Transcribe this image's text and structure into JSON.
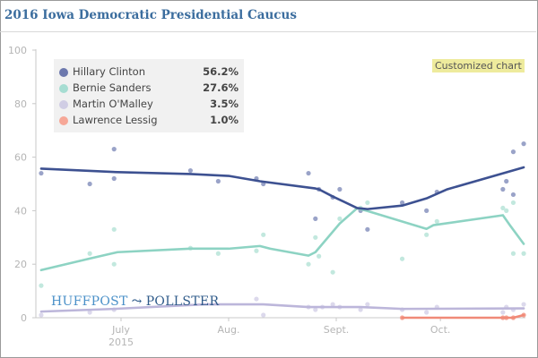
{
  "header": {
    "title": "2016 Iowa Democratic Presidential Caucus"
  },
  "badge": "Customized chart",
  "logo": {
    "left": "HUFFPOST",
    "right": "POLLSTER"
  },
  "legend": [
    {
      "name": "Hillary Clinton",
      "value": "56.2%"
    },
    {
      "name": "Bernie Sanders",
      "value": "27.6%"
    },
    {
      "name": "Martin O'Malley",
      "value": "3.5%"
    },
    {
      "name": "Lawrence Lessig",
      "value": "1.0%"
    }
  ],
  "chart_data": {
    "type": "line",
    "title": "2016 Iowa Democratic Presidential Caucus",
    "x_unit": "days since June 1, 2015",
    "xlim": [
      6.5,
      146.5
    ],
    "ylim": [
      0,
      100
    ],
    "y_ticks": [
      0,
      20,
      40,
      60,
      80,
      100
    ],
    "x_ticks": [
      {
        "value": 30,
        "label": "July",
        "sublabel": "2015"
      },
      {
        "value": 61,
        "label": "Aug."
      },
      {
        "value": 92,
        "label": "Sept."
      },
      {
        "value": 122,
        "label": "Oct."
      }
    ],
    "legend_position": "top-left",
    "series": [
      {
        "name": "Hillary Clinton",
        "color": "#3d5191",
        "dot_color": "#9aa3c8",
        "trend": [
          [
            7,
            55.7
          ],
          [
            29,
            54.4
          ],
          [
            50,
            53.7
          ],
          [
            61,
            53
          ],
          [
            70,
            51
          ],
          [
            86,
            48.3
          ],
          [
            87,
            48
          ],
          [
            91,
            45.3
          ],
          [
            98,
            41
          ],
          [
            101,
            40.6
          ],
          [
            111,
            41.9
          ],
          [
            118,
            44.6
          ],
          [
            124,
            48
          ],
          [
            146,
            56.2
          ]
        ],
        "polls": [
          [
            7,
            54
          ],
          [
            21,
            50
          ],
          [
            28,
            63
          ],
          [
            28,
            52
          ],
          [
            50,
            55
          ],
          [
            58,
            51
          ],
          [
            69,
            52
          ],
          [
            71,
            50
          ],
          [
            84,
            54
          ],
          [
            86,
            37
          ],
          [
            87,
            48
          ],
          [
            91,
            45
          ],
          [
            93,
            48
          ],
          [
            99,
            40
          ],
          [
            101,
            33
          ],
          [
            111,
            43
          ],
          [
            118,
            40
          ],
          [
            121,
            47
          ],
          [
            140,
            48
          ],
          [
            141,
            51
          ],
          [
            143,
            46
          ],
          [
            143,
            62
          ],
          [
            146,
            65
          ]
        ]
      },
      {
        "name": "Bernie Sanders",
        "color": "#8dd3c3",
        "dot_color": "#c2e8de",
        "trend": [
          [
            7,
            17.8
          ],
          [
            21,
            22.1
          ],
          [
            29,
            24.5
          ],
          [
            50,
            25.8
          ],
          [
            61,
            25.8
          ],
          [
            70,
            26.8
          ],
          [
            73,
            25.8
          ],
          [
            84,
            23.2
          ],
          [
            86,
            24.5
          ],
          [
            93,
            35.2
          ],
          [
            98,
            40.9
          ],
          [
            101,
            39.9
          ],
          [
            118,
            33.2
          ],
          [
            120,
            34.6
          ],
          [
            140,
            38.3
          ],
          [
            142,
            34.6
          ],
          [
            146,
            27.6
          ]
        ],
        "polls": [
          [
            7,
            12
          ],
          [
            21,
            24
          ],
          [
            28,
            33
          ],
          [
            28,
            20
          ],
          [
            50,
            26
          ],
          [
            58,
            24
          ],
          [
            69,
            25
          ],
          [
            71,
            31
          ],
          [
            84,
            20
          ],
          [
            86,
            30
          ],
          [
            87,
            23
          ],
          [
            91,
            17
          ],
          [
            93,
            37
          ],
          [
            99,
            41
          ],
          [
            101,
            43
          ],
          [
            111,
            22
          ],
          [
            118,
            31
          ],
          [
            121,
            36
          ],
          [
            140,
            41
          ],
          [
            141,
            40
          ],
          [
            143,
            43
          ],
          [
            143,
            24
          ],
          [
            146,
            24
          ]
        ]
      },
      {
        "name": "Martin O'Malley",
        "color": "#bcb6da",
        "dot_color": "#dcd9ec",
        "trend": [
          [
            7,
            2.3
          ],
          [
            28,
            3.3
          ],
          [
            54,
            5
          ],
          [
            71,
            5
          ],
          [
            84,
            4
          ],
          [
            99,
            4
          ],
          [
            111,
            3.3
          ],
          [
            146,
            3.5
          ]
        ],
        "polls": [
          [
            7,
            1
          ],
          [
            21,
            2
          ],
          [
            28,
            3
          ],
          [
            69,
            7
          ],
          [
            71,
            1
          ],
          [
            84,
            4
          ],
          [
            86,
            3
          ],
          [
            88,
            4
          ],
          [
            91,
            5
          ],
          [
            93,
            4
          ],
          [
            99,
            3
          ],
          [
            101,
            5
          ],
          [
            111,
            3
          ],
          [
            118,
            2
          ],
          [
            121,
            4
          ],
          [
            140,
            2
          ],
          [
            141,
            4
          ],
          [
            143,
            3
          ],
          [
            146,
            5
          ]
        ]
      },
      {
        "name": "Lawrence Lessig",
        "color": "#f08a78",
        "dot_color": "#f5a596",
        "trend": [
          [
            111,
            0
          ],
          [
            143,
            0
          ],
          [
            146,
            1.0
          ]
        ],
        "polls": [
          [
            111,
            0
          ],
          [
            140,
            0
          ],
          [
            141,
            0
          ],
          [
            143,
            0
          ],
          [
            146,
            1
          ]
        ]
      }
    ]
  }
}
